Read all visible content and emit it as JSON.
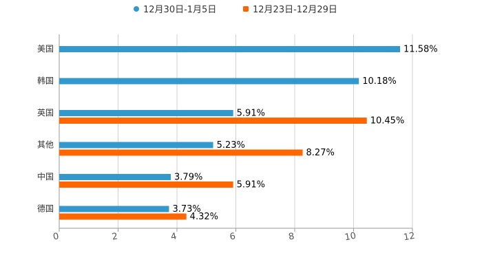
{
  "chart_data": {
    "type": "bar",
    "orientation": "horizontal",
    "categories": [
      "美国",
      "韩国",
      "英国",
      "其他",
      "中国",
      "德国"
    ],
    "series": [
      {
        "name": "12月30日-1月5日",
        "color": "#3399CC",
        "values": [
          11.58,
          10.18,
          5.91,
          5.23,
          3.79,
          3.73
        ],
        "labels": [
          "11.58%",
          "10.18%",
          "5.91%",
          "5.23%",
          "3.79%",
          "3.73%"
        ]
      },
      {
        "name": "12月23日-12月29日",
        "color": "#FF6600",
        "values": [
          null,
          null,
          10.45,
          8.27,
          5.91,
          4.32
        ],
        "labels": [
          "",
          "",
          "10.45%",
          "8.27%",
          "5.91%",
          "4.32%"
        ]
      }
    ],
    "xlim": [
      0,
      12
    ],
    "xticks": [
      "0",
      "2",
      "4",
      "6",
      "8",
      "10",
      "12"
    ],
    "grid": true,
    "legend": "top"
  }
}
